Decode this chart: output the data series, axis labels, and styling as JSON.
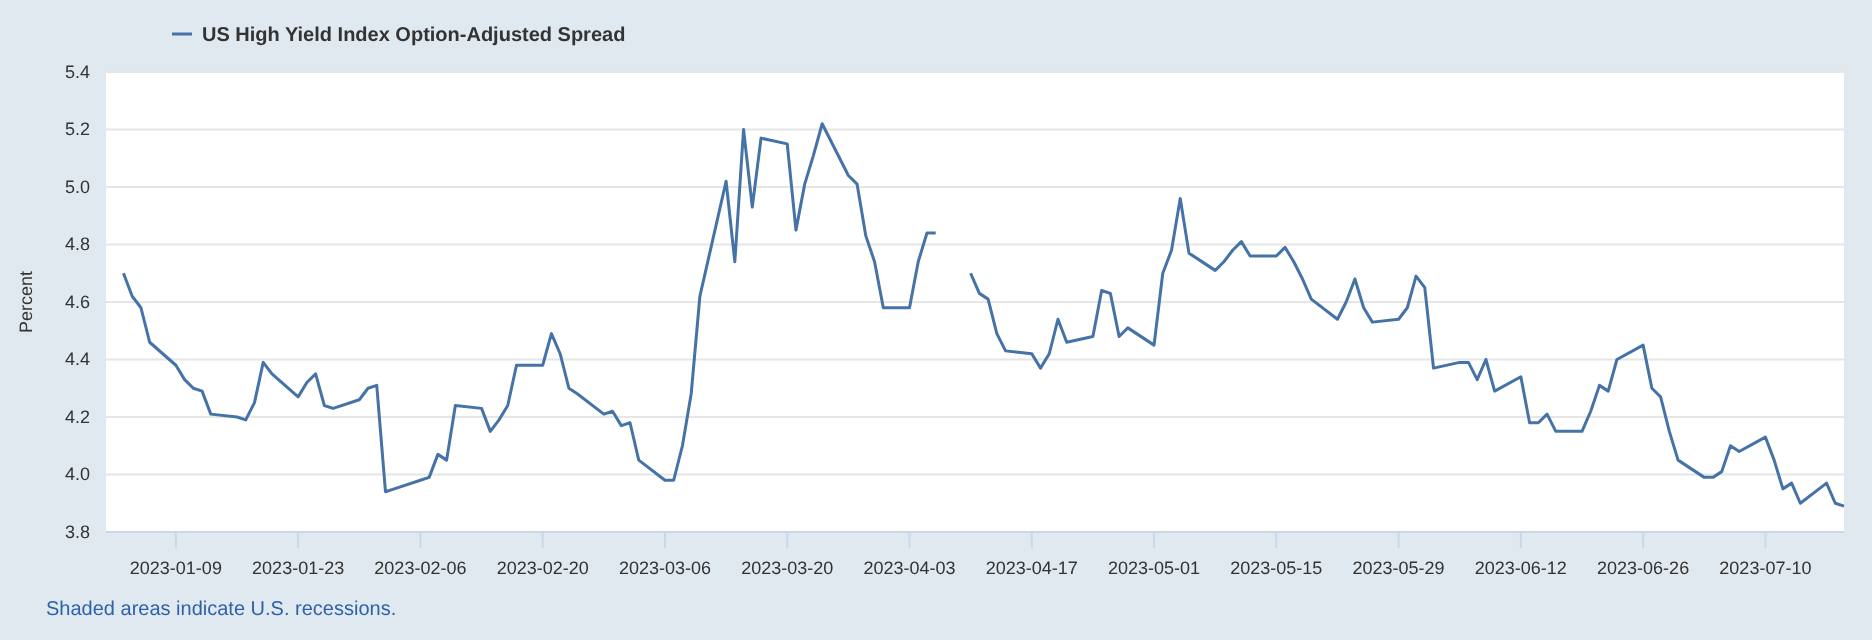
{
  "chart_data": {
    "type": "line",
    "ylabel": "Percent",
    "legend": "top left",
    "grid": "y",
    "marker": "none",
    "line_style": "solid",
    "annotations": [
      "Shaded areas indicate U.S. recessions."
    ],
    "xlim": [
      "2023-01-01",
      "2023-07-19"
    ],
    "xticks": [
      "2023-01-09",
      "2023-01-23",
      "2023-02-06",
      "2023-02-20",
      "2023-03-06",
      "2023-03-20",
      "2023-04-03",
      "2023-04-17",
      "2023-05-01",
      "2023-05-15",
      "2023-05-29",
      "2023-06-12",
      "2023-06-26",
      "2023-07-10"
    ],
    "ylim": [
      3.8,
      5.4
    ],
    "yticks": [
      3.8,
      {
        "value": 4,
        "label": "4.0"
      },
      4.2,
      4.4,
      4.6,
      4.8,
      {
        "value": 5,
        "label": "5.0"
      },
      5.2,
      5.4
    ],
    "x": [
      "2023-01-03",
      "2023-01-04",
      "2023-01-05",
      "2023-01-06",
      "2023-01-09",
      "2023-01-10",
      "2023-01-11",
      "2023-01-12",
      "2023-01-13",
      "2023-01-16",
      "2023-01-17",
      "2023-01-18",
      "2023-01-19",
      "2023-01-20",
      "2023-01-23",
      "2023-01-24",
      "2023-01-25",
      "2023-01-26",
      "2023-01-27",
      "2023-01-30",
      "2023-01-31",
      "2023-02-01",
      "2023-02-02",
      "2023-02-03",
      "2023-02-06",
      "2023-02-07",
      "2023-02-08",
      "2023-02-09",
      "2023-02-10",
      "2023-02-13",
      "2023-02-14",
      "2023-02-15",
      "2023-02-16",
      "2023-02-17",
      "2023-02-20",
      "2023-02-21",
      "2023-02-22",
      "2023-02-23",
      "2023-02-24",
      "2023-02-27",
      "2023-02-28",
      "2023-03-01",
      "2023-03-02",
      "2023-03-03",
      "2023-03-06",
      "2023-03-07",
      "2023-03-08",
      "2023-03-09",
      "2023-03-10",
      "2023-03-13",
      "2023-03-14",
      "2023-03-15",
      "2023-03-16",
      "2023-03-17",
      "2023-03-20",
      "2023-03-21",
      "2023-03-22",
      "2023-03-23",
      "2023-03-24",
      "2023-03-27",
      "2023-03-28",
      "2023-03-29",
      "2023-03-30",
      "2023-03-31",
      "2023-04-03",
      "2023-04-04",
      "2023-04-05",
      "2023-04-06",
      "2023-04-07",
      "2023-04-10",
      "2023-04-11",
      "2023-04-12",
      "2023-04-13",
      "2023-04-14",
      "2023-04-17",
      "2023-04-18",
      "2023-04-19",
      "2023-04-20",
      "2023-04-21",
      "2023-04-24",
      "2023-04-25",
      "2023-04-26",
      "2023-04-27",
      "2023-04-28",
      "2023-05-01",
      "2023-05-02",
      "2023-05-03",
      "2023-05-04",
      "2023-05-05",
      "2023-05-08",
      "2023-05-09",
      "2023-05-10",
      "2023-05-11",
      "2023-05-12",
      "2023-05-15",
      "2023-05-16",
      "2023-05-17",
      "2023-05-18",
      "2023-05-19",
      "2023-05-22",
      "2023-05-23",
      "2023-05-24",
      "2023-05-25",
      "2023-05-26",
      "2023-05-29",
      "2023-05-30",
      "2023-05-31",
      "2023-06-01",
      "2023-06-02",
      "2023-06-05",
      "2023-06-06",
      "2023-06-07",
      "2023-06-08",
      "2023-06-09",
      "2023-06-12",
      "2023-06-13",
      "2023-06-14",
      "2023-06-15",
      "2023-06-16",
      "2023-06-19",
      "2023-06-20",
      "2023-06-21",
      "2023-06-22",
      "2023-06-23",
      "2023-06-26",
      "2023-06-27",
      "2023-06-28",
      "2023-06-29",
      "2023-06-30",
      "2023-07-03",
      "2023-07-04",
      "2023-07-05",
      "2023-07-06",
      "2023-07-07",
      "2023-07-10",
      "2023-07-11",
      "2023-07-12",
      "2023-07-13",
      "2023-07-14",
      "2023-07-17",
      "2023-07-18",
      "2023-07-19"
    ],
    "series": [
      {
        "name": "US High Yield Index Option-Adjusted Spread",
        "color": "#4572a7",
        "values": [
          4.7,
          4.62,
          4.58,
          4.46,
          4.38,
          4.33,
          4.3,
          4.29,
          4.21,
          4.2,
          4.19,
          4.25,
          4.39,
          4.35,
          4.27,
          4.32,
          4.35,
          4.24,
          4.23,
          4.26,
          4.3,
          4.31,
          3.94,
          3.95,
          3.98,
          3.99,
          4.07,
          4.05,
          4.24,
          4.23,
          4.15,
          4.19,
          4.24,
          4.38,
          4.38,
          4.49,
          4.42,
          4.3,
          4.28,
          4.21,
          4.22,
          4.17,
          4.18,
          4.05,
          3.98,
          3.98,
          4.1,
          4.28,
          4.62,
          5.02,
          4.74,
          5.2,
          4.93,
          5.17,
          5.15,
          4.85,
          5.01,
          5.11,
          5.22,
          5.04,
          5.01,
          4.83,
          4.74,
          4.58,
          4.58,
          4.74,
          4.84,
          4.84,
          null,
          4.7,
          4.63,
          4.61,
          4.49,
          4.43,
          4.42,
          4.37,
          4.42,
          4.54,
          4.46,
          4.48,
          4.64,
          4.63,
          4.48,
          4.51,
          4.45,
          4.7,
          4.78,
          4.96,
          4.77,
          4.71,
          4.74,
          4.78,
          4.81,
          4.76,
          4.76,
          4.79,
          4.74,
          4.68,
          4.61,
          4.54,
          4.6,
          4.68,
          4.58,
          4.53,
          4.54,
          4.58,
          4.69,
          4.65,
          4.37,
          4.39,
          4.39,
          4.33,
          4.4,
          4.29,
          4.34,
          4.18,
          4.18,
          4.21,
          4.15,
          4.15,
          4.22,
          4.31,
          4.29,
          4.4,
          4.45,
          4.3,
          4.27,
          4.15,
          4.05,
          3.99,
          3.99,
          4.01,
          4.1,
          4.08,
          4.13,
          4.05,
          3.95,
          3.97,
          3.9,
          3.97,
          3.9,
          3.89
        ]
      }
    ]
  }
}
